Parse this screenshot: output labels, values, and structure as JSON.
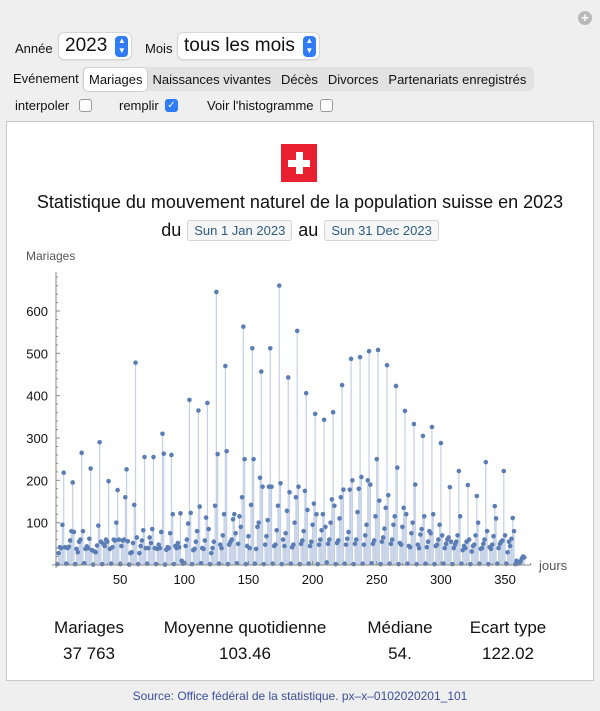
{
  "controls": {
    "year_label": "Année",
    "year_value": "2023",
    "month_label": "Mois",
    "month_value": "tous les mois",
    "event_label": "Evénement",
    "events": [
      "Mariages",
      "Naissances vivantes",
      "Décès",
      "Divorces",
      "Partenariats enregistrés"
    ],
    "active_event": "Mariages",
    "checkboxes": [
      {
        "label": "interpoler",
        "checked": false
      },
      {
        "label": "remplir",
        "checked": true
      },
      {
        "label": "Voir l'histogramme",
        "checked": false
      }
    ]
  },
  "title": "Statistique du mouvement naturel de la population suisse en 2023",
  "date_range": {
    "from_label": "du",
    "from": "Sun 1 Jan 2023",
    "to_label": "au",
    "to": "Sun 31 Dec 2023"
  },
  "colors": {
    "flag": "#e8202f",
    "points": "#5b7db5",
    "stems": "#c3d0e6"
  },
  "stats": [
    {
      "label": "Mariages",
      "value": "37 763"
    },
    {
      "label": "Moyenne quotidienne",
      "value": "103.46"
    },
    {
      "label": "Médiane",
      "value": "54."
    },
    {
      "label": "Ecart type",
      "value": "122.02"
    }
  ],
  "source": "Source: Office fédéral de la statistique. px–x–0102020201_101",
  "chart_data": {
    "type": "scatter",
    "style": "stem-filled",
    "ylabel": "Mariages",
    "xlabel": "jours",
    "xlim": [
      0,
      370
    ],
    "ylim": [
      0,
      690
    ],
    "xticks": [
      50,
      100,
      150,
      200,
      250,
      300,
      350
    ],
    "yticks": [
      100,
      200,
      300,
      400,
      500,
      600
    ],
    "values": [
      2,
      28,
      42,
      40,
      95,
      218,
      42,
      3,
      40,
      43,
      58,
      80,
      195,
      78,
      2,
      38,
      30,
      55,
      60,
      265,
      80,
      4,
      38,
      44,
      40,
      62,
      228,
      35,
      1,
      32,
      30,
      46,
      93,
      290,
      55,
      2,
      50,
      45,
      60,
      55,
      198,
      38,
      3,
      42,
      60,
      58,
      100,
      177,
      60,
      2,
      45,
      58,
      60,
      160,
      226,
      56,
      1,
      28,
      30,
      52,
      142,
      478,
      65,
      2,
      28,
      45,
      58,
      82,
      255,
      40,
      3,
      40,
      65,
      52,
      85,
      255,
      40,
      2,
      38,
      48,
      40,
      78,
      310,
      263,
      1,
      36,
      42,
      40,
      75,
      260,
      120,
      2,
      45,
      40,
      52,
      42,
      122,
      10,
      3,
      5,
      45,
      60,
      98,
      390,
      123,
      2,
      35,
      38,
      55,
      80,
      365,
      138,
      4,
      40,
      38,
      58,
      112,
      383,
      85,
      2,
      28,
      40,
      55,
      140,
      645,
      262,
      3,
      48,
      40,
      70,
      120,
      470,
      269,
      2,
      48,
      55,
      60,
      108,
      120,
      75,
      4,
      50,
      115,
      90,
      160,
      563,
      250,
      2,
      45,
      68,
      40,
      142,
      512,
      250,
      3,
      38,
      90,
      100,
      206,
      457,
      185,
      2,
      48,
      68,
      106,
      185,
      512,
      185,
      3,
      45,
      48,
      82,
      140,
      660,
      193,
      2,
      60,
      45,
      75,
      128,
      443,
      172,
      3,
      42,
      48,
      100,
      160,
      553,
      185,
      2,
      50,
      58,
      80,
      175,
      406,
      130,
      3,
      45,
      55,
      95,
      145,
      357,
      120,
      2,
      48,
      60,
      82,
      120,
      343,
      90,
      6,
      50,
      60,
      100,
      155,
      361,
      140,
      2,
      52,
      58,
      110,
      160,
      425,
      178,
      3,
      48,
      62,
      78,
      178,
      487,
      200,
      2,
      50,
      60,
      125,
      180,
      491,
      208,
      3,
      48,
      70,
      95,
      200,
      505,
      190,
      4,
      50,
      58,
      115,
      250,
      508,
      152,
      2,
      55,
      65,
      86,
      135,
      472,
      165,
      3,
      50,
      60,
      95,
      115,
      423,
      230,
      2,
      52,
      48,
      90,
      135,
      364,
      120,
      3,
      45,
      42,
      75,
      100,
      333,
      190,
      2,
      48,
      40,
      72,
      85,
      305,
      115,
      3,
      42,
      55,
      80,
      75,
      326,
      120,
      2,
      45,
      48,
      60,
      95,
      288,
      70,
      3,
      40,
      50,
      60,
      65,
      184,
      55,
      2,
      40,
      48,
      55,
      70,
      222,
      115,
      3,
      35,
      45,
      40,
      55,
      189,
      60,
      2,
      32,
      45,
      48,
      70,
      163,
      100,
      3,
      38,
      40,
      50,
      60,
      243,
      80,
      2,
      42,
      38,
      48,
      68,
      139,
      110,
      3,
      40,
      50,
      55,
      58,
      222,
      70,
      3,
      30,
      55,
      45,
      62,
      111,
      80,
      2,
      10,
      3,
      4,
      8,
      15,
      20,
      18
    ]
  }
}
